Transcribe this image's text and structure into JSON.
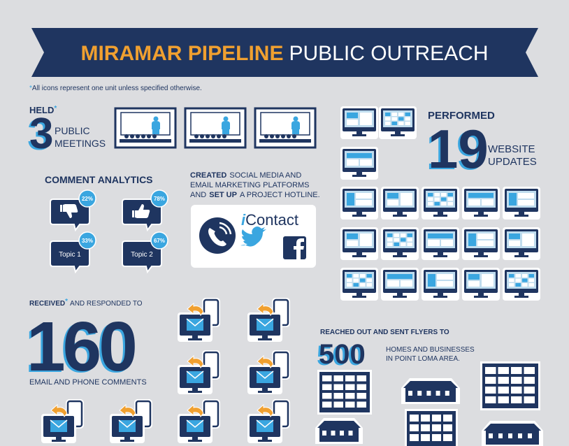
{
  "banner": {
    "title_bold": "MIRAMAR PIPELINE",
    "title_light": "PUBLIC OUTREACH"
  },
  "note": {
    "asterisk": "*",
    "text": "All icons represent one unit unless specified otherwise."
  },
  "meetings": {
    "held": "HELD",
    "asterisk": "*",
    "number": "3",
    "line1": "PUBLIC",
    "line2": "MEETINGS"
  },
  "comments": {
    "title": "COMMENT ANALYTICS",
    "bubbles": [
      {
        "percent": "22%"
      },
      {
        "percent": "78%"
      },
      {
        "percent": "33%",
        "label": "Topic 1"
      },
      {
        "percent": "67%",
        "label": "Topic 2"
      }
    ]
  },
  "social": {
    "created": "CREATED",
    "text1": "SOCIAL MEDIA AND",
    "text2": "EMAIL MARKETING PLATFORMS",
    "text3": "AND",
    "setup": "SET UP",
    "text4": "A PROJECT HOTLINE.",
    "logo_i": "i",
    "logo_rest": "Contact"
  },
  "website": {
    "performed": "PERFORMED",
    "number": "19",
    "line1": "WEBSITE",
    "line2": "UPDATES"
  },
  "emails": {
    "received": "RECEIVED",
    "asterisk": "*",
    "rest": "AND RESPONDED TO",
    "number": "160",
    "caption": "EMAIL AND PHONE COMMENTS"
  },
  "flyers": {
    "heading": "REACHED OUT AND SENT FLYERS TO",
    "number": "500",
    "line1": "HOMES AND BUSINESSES",
    "line2": "IN POINT LOMA AREA."
  }
}
